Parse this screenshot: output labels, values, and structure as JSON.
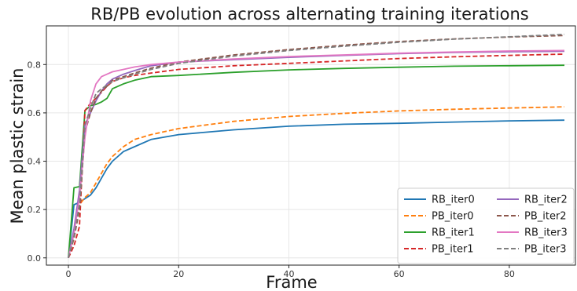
{
  "chart_data": {
    "type": "line",
    "title": "RB/PB evolution across alternating training iterations",
    "xlabel": "Frame",
    "ylabel": "Mean plastic strain",
    "xlim": [
      -4,
      92
    ],
    "ylim": [
      -0.03,
      0.96
    ],
    "xticks": [
      0,
      20,
      40,
      60,
      80
    ],
    "yticks": [
      0.0,
      0.2,
      0.4,
      0.6,
      0.8
    ],
    "grid": true,
    "legend": "lower-right",
    "x": [
      0,
      1,
      2,
      3,
      4,
      5,
      6,
      7,
      8,
      10,
      12,
      15,
      20,
      30,
      40,
      50,
      60,
      70,
      80,
      90
    ],
    "series": [
      {
        "name": "RB_iter0",
        "color": "#1f77b4",
        "dash": "solid",
        "values": [
          0.0,
          0.22,
          0.23,
          0.245,
          0.26,
          0.29,
          0.33,
          0.37,
          0.4,
          0.44,
          0.46,
          0.49,
          0.51,
          0.53,
          0.545,
          0.553,
          0.557,
          0.562,
          0.567,
          0.57
        ]
      },
      {
        "name": "PB_iter0",
        "color": "#ff7f0e",
        "dash": "dashed",
        "values": [
          0.0,
          0.1,
          0.22,
          0.25,
          0.27,
          0.31,
          0.35,
          0.39,
          0.42,
          0.46,
          0.49,
          0.51,
          0.535,
          0.565,
          0.585,
          0.598,
          0.608,
          0.615,
          0.62,
          0.625
        ]
      },
      {
        "name": "RB_iter1",
        "color": "#2ca02c",
        "dash": "solid",
        "values": [
          0.0,
          0.29,
          0.295,
          0.61,
          0.63,
          0.635,
          0.645,
          0.66,
          0.7,
          0.72,
          0.735,
          0.75,
          0.755,
          0.768,
          0.778,
          0.784,
          0.789,
          0.793,
          0.795,
          0.797
        ]
      },
      {
        "name": "PB_iter1",
        "color": "#d62728",
        "dash": "dashed",
        "values": [
          0.0,
          0.05,
          0.13,
          0.61,
          0.64,
          0.66,
          0.685,
          0.71,
          0.73,
          0.745,
          0.755,
          0.765,
          0.78,
          0.795,
          0.805,
          0.815,
          0.825,
          0.832,
          0.838,
          0.843
        ]
      },
      {
        "name": "RB_iter2",
        "color": "#9467bd",
        "dash": "solid",
        "values": [
          0.0,
          0.12,
          0.28,
          0.55,
          0.6,
          0.65,
          0.69,
          0.72,
          0.74,
          0.76,
          0.775,
          0.795,
          0.81,
          0.82,
          0.83,
          0.838,
          0.845,
          0.85,
          0.853,
          0.855
        ]
      },
      {
        "name": "PB_iter2",
        "color": "#8c564b",
        "dash": "dashed",
        "values": [
          0.0,
          0.08,
          0.2,
          0.52,
          0.6,
          0.66,
          0.69,
          0.71,
          0.735,
          0.75,
          0.765,
          0.785,
          0.81,
          0.84,
          0.862,
          0.88,
          0.895,
          0.906,
          0.914,
          0.92
        ]
      },
      {
        "name": "RB_iter3",
        "color": "#e377c2",
        "dash": "solid",
        "values": [
          0.0,
          0.1,
          0.25,
          0.5,
          0.65,
          0.72,
          0.75,
          0.76,
          0.77,
          0.78,
          0.79,
          0.8,
          0.81,
          0.823,
          0.833,
          0.84,
          0.847,
          0.852,
          0.856,
          0.858
        ]
      },
      {
        "name": "PB_iter3",
        "color": "#7f7f7f",
        "dash": "dashed",
        "values": [
          0.0,
          0.09,
          0.22,
          0.55,
          0.62,
          0.68,
          0.7,
          0.715,
          0.73,
          0.745,
          0.76,
          0.78,
          0.805,
          0.835,
          0.858,
          0.876,
          0.892,
          0.905,
          0.915,
          0.925
        ]
      }
    ]
  }
}
